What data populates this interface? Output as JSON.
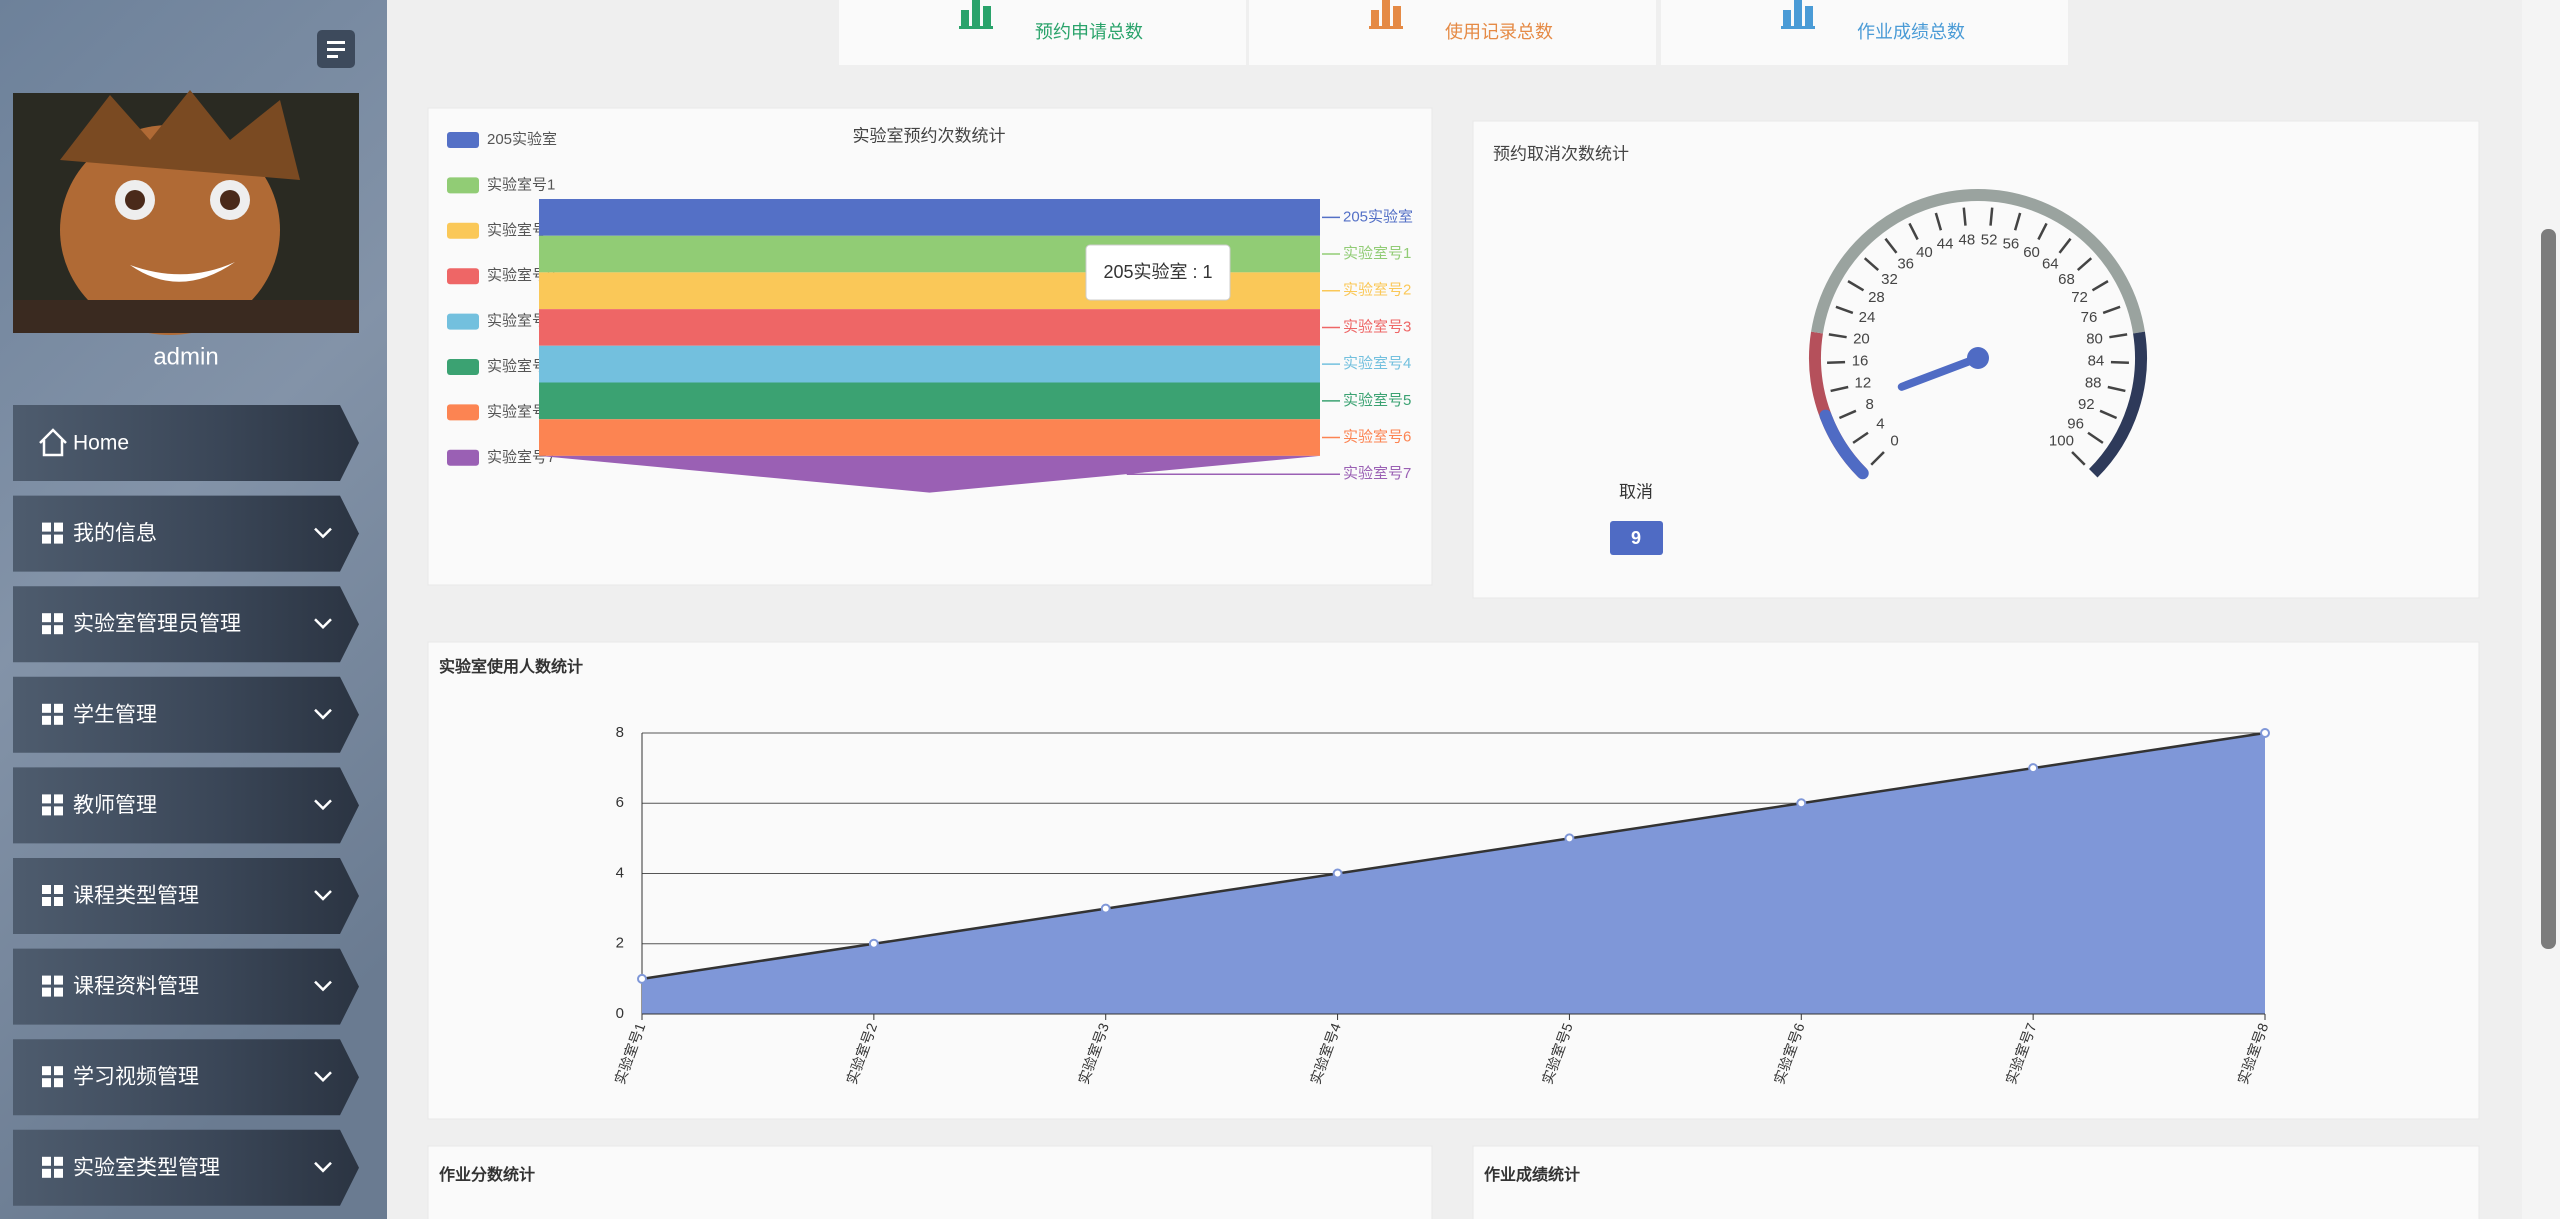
{
  "sidebar": {
    "user": "admin",
    "menu": [
      "Home",
      "我的信息",
      "实验室管理员管理",
      "学生管理",
      "教师管理",
      "课程类型管理",
      "课程资料管理",
      "学习视频管理",
      "实验室类型管理"
    ]
  },
  "cards": [
    {
      "label": "预约申请总数",
      "color": "#2aa36b"
    },
    {
      "label": "使用记录总数",
      "color": "#e58a45"
    },
    {
      "label": "作业成绩总数",
      "color": "#4a9bd6"
    }
  ],
  "chart_data": [
    {
      "type": "funnel",
      "title": "实验室预约次数统计",
      "categories": [
        "205实验室",
        "实验室号1",
        "实验室号2",
        "实验室号3",
        "实验室号4",
        "实验室号5",
        "实验室号6",
        "实验室号7"
      ],
      "values": [
        1,
        1,
        1,
        1,
        1,
        1,
        1,
        1
      ],
      "colors": [
        "#5470c6",
        "#91cc75",
        "#fac858",
        "#ee6666",
        "#73c0de",
        "#3ba272",
        "#fc8452",
        "#9a60b4"
      ],
      "tooltip": "205实验室 : 1"
    },
    {
      "type": "gauge",
      "title": "预约取消次数统计",
      "series_name": "取消",
      "value": 9,
      "range": [
        0,
        100
      ],
      "ticks": [
        0,
        4,
        8,
        12,
        16,
        20,
        24,
        28,
        32,
        36,
        40,
        44,
        48,
        52,
        56,
        60,
        64,
        68,
        72,
        76,
        80,
        84,
        88,
        92,
        96,
        100
      ],
      "color": "#4f6bc4"
    },
    {
      "type": "line",
      "title": "实验室使用人数统计",
      "categories": [
        "实验室号1",
        "实验室号2",
        "实验室号3",
        "实验室号4",
        "实验室号5",
        "实验室号6",
        "实验室号7",
        "实验室号8"
      ],
      "values": [
        1,
        2,
        3,
        4,
        5,
        6,
        7,
        8
      ],
      "ylim": [
        0,
        8
      ],
      "yticks": [
        0,
        2,
        4,
        6,
        8
      ],
      "color": "#7f97d8",
      "grid": true
    }
  ],
  "panels": [
    {
      "title": "作业分数统计"
    },
    {
      "title": "作业成绩统计"
    }
  ]
}
